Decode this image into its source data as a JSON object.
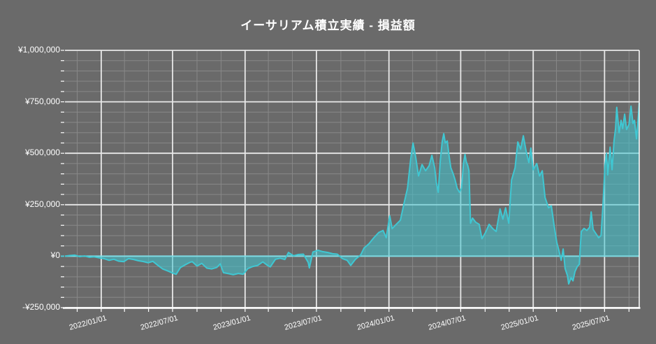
{
  "header": {
    "title": "イーサリアム積立実績 - 損益額"
  },
  "chart_data": {
    "type": "area",
    "title": "イーサリアム積立実績 - 損益額",
    "series_name": "損益額",
    "currency": "JPY",
    "grid": "on",
    "legend": "none",
    "colors": {
      "background": "#6a6a6a",
      "line": "#40c7d2",
      "fill": "rgba(64,199,210,0.55)",
      "zero_line": "#7fdbe3",
      "grid_minor": "#888888",
      "grid_major": "#e8e8e8",
      "axis": "#ffffff",
      "text": "#ffffff",
      "zero_tick": "#4fc8d4"
    },
    "y_axis": {
      "min": -250000,
      "max": 1000000,
      "minor_step": 50000,
      "major_step": 250000,
      "tick_labels": [
        {
          "value": 1000000,
          "label": "¥1,000,000"
        },
        {
          "value": 750000,
          "label": "¥750,000"
        },
        {
          "value": 500000,
          "label": "¥500,000"
        },
        {
          "value": 250000,
          "label": "¥250,000"
        },
        {
          "value": 0,
          "label": "¥0"
        },
        {
          "value": -250000,
          "label": "-¥250,000"
        }
      ]
    },
    "x_axis": {
      "start": "2021-10-01",
      "end": "2025-09-27",
      "minor_interval_months": 2,
      "major_interval_months": 6,
      "tick_labels": [
        {
          "date": "2022-01-01",
          "label": "2022/01/01"
        },
        {
          "date": "2022-07-01",
          "label": "2022/07/01"
        },
        {
          "date": "2023-01-01",
          "label": "2023/01/01"
        },
        {
          "date": "2023-07-01",
          "label": "2023/07/01"
        },
        {
          "date": "2024-01-01",
          "label": "2024/01/01"
        },
        {
          "date": "2024-07-01",
          "label": "2024/07/01"
        },
        {
          "date": "2025-01-01",
          "label": "2025/01/01"
        },
        {
          "date": "2025-07-01",
          "label": "2025/07/01"
        }
      ]
    },
    "points": [
      [
        "2021-10-01",
        0
      ],
      [
        "2021-10-13",
        3000
      ],
      [
        "2021-10-26",
        5000
      ],
      [
        "2021-11-07",
        -2000
      ],
      [
        "2021-11-20",
        1000
      ],
      [
        "2021-12-02",
        -5000
      ],
      [
        "2021-12-14",
        -3000
      ],
      [
        "2021-12-27",
        -8000
      ],
      [
        "2022-01-08",
        -12000
      ],
      [
        "2022-01-21",
        -20000
      ],
      [
        "2022-02-02",
        -15000
      ],
      [
        "2022-02-14",
        -24000
      ],
      [
        "2022-02-27",
        -27000
      ],
      [
        "2022-03-11",
        -12000
      ],
      [
        "2022-03-24",
        -16000
      ],
      [
        "2022-04-05",
        -22000
      ],
      [
        "2022-04-18",
        -26000
      ],
      [
        "2022-04-30",
        -32000
      ],
      [
        "2022-05-12",
        -25000
      ],
      [
        "2022-05-25",
        -45000
      ],
      [
        "2022-06-06",
        -62000
      ],
      [
        "2022-06-19",
        -72000
      ],
      [
        "2022-07-01",
        -82000
      ],
      [
        "2022-07-10",
        -88000
      ],
      [
        "2022-07-21",
        -55000
      ],
      [
        "2022-08-02",
        -42000
      ],
      [
        "2022-08-14",
        -30000
      ],
      [
        "2022-08-20",
        -27000
      ],
      [
        "2022-09-01",
        -48000
      ],
      [
        "2022-09-13",
        -35000
      ],
      [
        "2022-09-26",
        -58000
      ],
      [
        "2022-10-08",
        -62000
      ],
      [
        "2022-10-21",
        -55000
      ],
      [
        "2022-10-30",
        -37000
      ],
      [
        "2022-11-07",
        -80000
      ],
      [
        "2022-11-20",
        -85000
      ],
      [
        "2022-12-02",
        -90000
      ],
      [
        "2022-12-15",
        -84000
      ],
      [
        "2022-12-27",
        -88000
      ],
      [
        "2023-01-08",
        -60000
      ],
      [
        "2023-01-21",
        -50000
      ],
      [
        "2023-02-02",
        -45000
      ],
      [
        "2023-02-15",
        -28000
      ],
      [
        "2023-02-27",
        -45000
      ],
      [
        "2023-03-06",
        -52000
      ],
      [
        "2023-03-19",
        -15000
      ],
      [
        "2023-03-31",
        -10000
      ],
      [
        "2023-04-12",
        -16000
      ],
      [
        "2023-04-21",
        18000
      ],
      [
        "2023-05-04",
        2000
      ],
      [
        "2023-05-16",
        8000
      ],
      [
        "2023-05-29",
        10000
      ],
      [
        "2023-06-10",
        -30000
      ],
      [
        "2023-06-13",
        -57000
      ],
      [
        "2023-06-22",
        20000
      ],
      [
        "2023-07-05",
        29000
      ],
      [
        "2023-07-17",
        22000
      ],
      [
        "2023-07-30",
        18000
      ],
      [
        "2023-08-11",
        12000
      ],
      [
        "2023-08-23",
        10000
      ],
      [
        "2023-09-05",
        -12000
      ],
      [
        "2023-09-17",
        -20000
      ],
      [
        "2023-09-26",
        -45000
      ],
      [
        "2023-10-08",
        -15000
      ],
      [
        "2023-10-21",
        5000
      ],
      [
        "2023-10-30",
        40000
      ],
      [
        "2023-11-11",
        60000
      ],
      [
        "2023-11-23",
        88000
      ],
      [
        "2023-12-06",
        115000
      ],
      [
        "2023-12-17",
        125000
      ],
      [
        "2023-12-25",
        90000
      ],
      [
        "2024-01-03",
        196000
      ],
      [
        "2024-01-09",
        134000
      ],
      [
        "2024-01-17",
        150000
      ],
      [
        "2024-01-30",
        175000
      ],
      [
        "2024-02-08",
        255000
      ],
      [
        "2024-02-17",
        330000
      ],
      [
        "2024-02-25",
        470000
      ],
      [
        "2024-03-02",
        550000
      ],
      [
        "2024-03-09",
        480000
      ],
      [
        "2024-03-16",
        390000
      ],
      [
        "2024-03-25",
        445000
      ],
      [
        "2024-04-03",
        415000
      ],
      [
        "2024-04-12",
        440000
      ],
      [
        "2024-04-19",
        490000
      ],
      [
        "2024-04-26",
        430000
      ],
      [
        "2024-04-30",
        360000
      ],
      [
        "2024-05-05",
        310000
      ],
      [
        "2024-05-10",
        460000
      ],
      [
        "2024-05-15",
        555000
      ],
      [
        "2024-05-19",
        595000
      ],
      [
        "2024-05-23",
        550000
      ],
      [
        "2024-05-28",
        560000
      ],
      [
        "2024-06-01",
        495000
      ],
      [
        "2024-06-06",
        430000
      ],
      [
        "2024-06-12",
        400000
      ],
      [
        "2024-06-17",
        370000
      ],
      [
        "2024-06-22",
        330000
      ],
      [
        "2024-06-28",
        310000
      ],
      [
        "2024-07-03",
        330000
      ],
      [
        "2024-07-08",
        450000
      ],
      [
        "2024-07-12",
        495000
      ],
      [
        "2024-07-15",
        460000
      ],
      [
        "2024-07-19",
        440000
      ],
      [
        "2024-07-22",
        415000
      ],
      [
        "2024-07-26",
        160000
      ],
      [
        "2024-07-31",
        185000
      ],
      [
        "2024-08-08",
        165000
      ],
      [
        "2024-08-17",
        155000
      ],
      [
        "2024-08-24",
        85000
      ],
      [
        "2024-09-02",
        115000
      ],
      [
        "2024-09-11",
        155000
      ],
      [
        "2024-09-20",
        135000
      ],
      [
        "2024-09-29",
        120000
      ],
      [
        "2024-10-09",
        230000
      ],
      [
        "2024-10-16",
        180000
      ],
      [
        "2024-10-23",
        235000
      ],
      [
        "2024-10-31",
        160000
      ],
      [
        "2024-11-07",
        370000
      ],
      [
        "2024-11-16",
        430000
      ],
      [
        "2024-11-23",
        555000
      ],
      [
        "2024-11-30",
        520000
      ],
      [
        "2024-12-07",
        585000
      ],
      [
        "2024-12-14",
        510000
      ],
      [
        "2024-12-21",
        455000
      ],
      [
        "2024-12-26",
        525000
      ],
      [
        "2025-01-01",
        420000
      ],
      [
        "2025-01-10",
        450000
      ],
      [
        "2025-01-17",
        390000
      ],
      [
        "2025-01-24",
        415000
      ],
      [
        "2025-01-31",
        285000
      ],
      [
        "2025-02-09",
        235000
      ],
      [
        "2025-02-16",
        245000
      ],
      [
        "2025-02-23",
        150000
      ],
      [
        "2025-03-02",
        65000
      ],
      [
        "2025-03-07",
        30000
      ],
      [
        "2025-03-13",
        -20000
      ],
      [
        "2025-03-18",
        35000
      ],
      [
        "2025-03-23",
        -60000
      ],
      [
        "2025-03-29",
        -95000
      ],
      [
        "2025-04-01",
        -135000
      ],
      [
        "2025-04-07",
        -105000
      ],
      [
        "2025-04-12",
        -120000
      ],
      [
        "2025-04-17",
        -75000
      ],
      [
        "2025-04-23",
        -50000
      ],
      [
        "2025-04-28",
        -40000
      ],
      [
        "2025-05-01",
        60000
      ],
      [
        "2025-05-03",
        120000
      ],
      [
        "2025-05-10",
        135000
      ],
      [
        "2025-05-17",
        125000
      ],
      [
        "2025-05-24",
        140000
      ],
      [
        "2025-05-28",
        215000
      ],
      [
        "2025-06-02",
        130000
      ],
      [
        "2025-06-09",
        110000
      ],
      [
        "2025-06-16",
        90000
      ],
      [
        "2025-06-22",
        100000
      ],
      [
        "2025-06-27",
        250000
      ],
      [
        "2025-07-02",
        440000
      ],
      [
        "2025-07-06",
        500000
      ],
      [
        "2025-07-09",
        395000
      ],
      [
        "2025-07-15",
        530000
      ],
      [
        "2025-07-20",
        420000
      ],
      [
        "2025-07-25",
        560000
      ],
      [
        "2025-07-29",
        620000
      ],
      [
        "2025-08-01",
        723000
      ],
      [
        "2025-08-07",
        600000
      ],
      [
        "2025-08-12",
        660000
      ],
      [
        "2025-08-16",
        620000
      ],
      [
        "2025-08-21",
        690000
      ],
      [
        "2025-08-26",
        615000
      ],
      [
        "2025-09-01",
        640000
      ],
      [
        "2025-09-06",
        729000
      ],
      [
        "2025-09-11",
        645000
      ],
      [
        "2025-09-15",
        660000
      ],
      [
        "2025-09-20",
        570000
      ],
      [
        "2025-09-24",
        660000
      ],
      [
        "2025-09-27",
        745000
      ]
    ]
  }
}
